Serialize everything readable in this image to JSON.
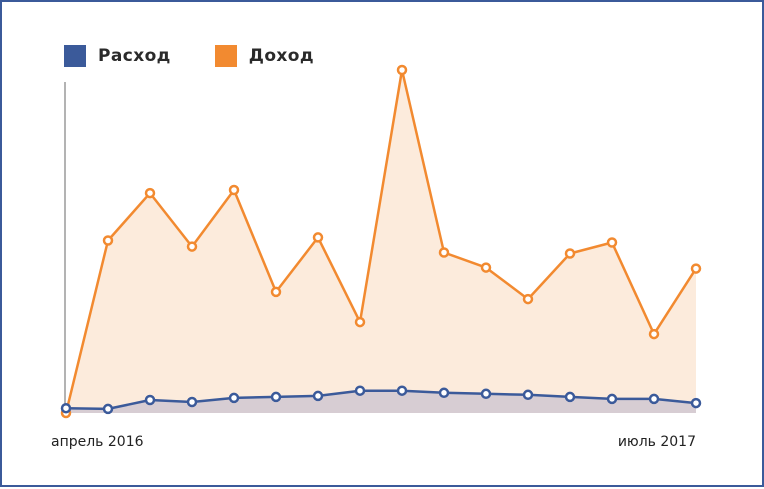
{
  "chart_data": {
    "type": "area",
    "x_labels": [
      "апрель 2016",
      "июль 2017"
    ],
    "legend_position": "top-left",
    "grid": false,
    "ylim": [
      0,
      100
    ],
    "series": [
      {
        "name": "Доход",
        "color": "#f28a30",
        "fill": "#fcebdc",
        "values": [
          0,
          50.3,
          64.1,
          48.5,
          65.0,
          35.3,
          51.2,
          26.5,
          100,
          46.8,
          42.4,
          33.2,
          46.5,
          49.7,
          23.0,
          42.1
        ]
      },
      {
        "name": "Расход",
        "color": "#3b5a9a",
        "fill": "#d7cdd3",
        "values": [
          1.4,
          1.2,
          3.8,
          3.2,
          4.4,
          4.7,
          5.0,
          6.5,
          6.5,
          5.9,
          5.6,
          5.3,
          4.7,
          4.1,
          4.1,
          2.9
        ]
      }
    ]
  }
}
